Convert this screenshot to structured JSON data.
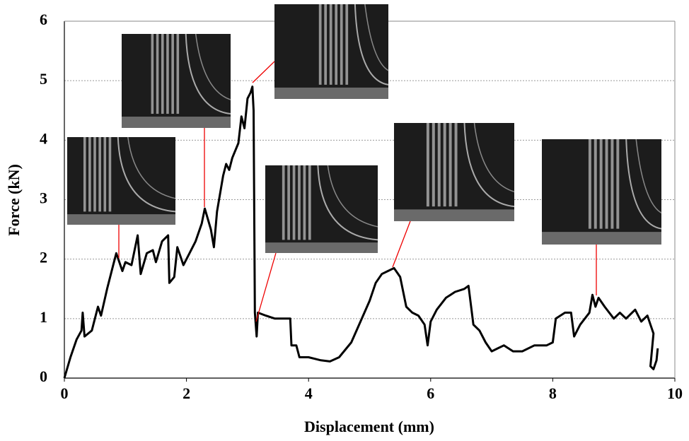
{
  "chart_data": {
    "type": "line",
    "x_label": "Displacement (mm)",
    "y_label": "Force (kN)",
    "x": [
      0,
      0.1,
      0.2,
      0.28,
      0.3,
      0.33,
      0.45,
      0.55,
      0.6,
      0.7,
      0.8,
      0.85,
      0.9,
      0.95,
      1.0,
      1.1,
      1.2,
      1.25,
      1.35,
      1.45,
      1.5,
      1.6,
      1.7,
      1.72,
      1.8,
      1.85,
      1.95,
      2.05,
      2.15,
      2.25,
      2.3,
      2.4,
      2.45,
      2.5,
      2.6,
      2.65,
      2.7,
      2.75,
      2.85,
      2.9,
      2.95,
      3.0,
      3.05,
      3.08,
      3.1,
      3.12,
      3.15,
      3.17,
      3.3,
      3.45,
      3.6,
      3.7,
      3.72,
      3.8,
      3.85,
      4.0,
      4.2,
      4.35,
      4.5,
      4.7,
      4.85,
      5.0,
      5.1,
      5.2,
      5.3,
      5.4,
      5.5,
      5.6,
      5.7,
      5.8,
      5.9,
      5.95,
      6.0,
      6.1,
      6.25,
      6.4,
      6.55,
      6.62,
      6.7,
      6.8,
      6.9,
      7.0,
      7.1,
      7.2,
      7.35,
      7.5,
      7.7,
      7.9,
      8.0,
      8.05,
      8.2,
      8.3,
      8.35,
      8.45,
      8.6,
      8.65,
      8.7,
      8.75,
      8.85,
      9.0,
      9.1,
      9.2,
      9.35,
      9.45,
      9.55,
      9.6,
      9.65,
      9.6,
      9.65,
      9.7,
      9.72
    ],
    "values": [
      0,
      0.35,
      0.65,
      0.8,
      1.1,
      0.7,
      0.8,
      1.2,
      1.05,
      1.5,
      1.9,
      2.1,
      1.95,
      1.8,
      1.95,
      1.9,
      2.4,
      1.75,
      2.1,
      2.15,
      1.95,
      2.3,
      2.4,
      1.6,
      1.7,
      2.2,
      1.9,
      2.1,
      2.3,
      2.6,
      2.85,
      2.5,
      2.2,
      2.8,
      3.4,
      3.6,
      3.5,
      3.7,
      3.95,
      4.4,
      4.2,
      4.7,
      4.8,
      4.9,
      4.5,
      1.1,
      0.7,
      1.1,
      1.05,
      1.0,
      1.0,
      1.0,
      0.55,
      0.55,
      0.35,
      0.35,
      0.3,
      0.28,
      0.35,
      0.6,
      0.95,
      1.3,
      1.6,
      1.75,
      1.8,
      1.85,
      1.7,
      1.2,
      1.1,
      1.05,
      0.9,
      0.55,
      0.95,
      1.15,
      1.35,
      1.45,
      1.5,
      1.55,
      0.9,
      0.8,
      0.6,
      0.45,
      0.5,
      0.55,
      0.45,
      0.45,
      0.55,
      0.55,
      0.6,
      1.0,
      1.1,
      1.1,
      0.7,
      0.9,
      1.1,
      1.4,
      1.2,
      1.35,
      1.2,
      1.0,
      1.1,
      1.0,
      1.15,
      0.95,
      1.05,
      0.9,
      0.75,
      0.2,
      0.15,
      0.3,
      0.5
    ],
    "color": "#000000",
    "xlim": [
      0,
      10
    ],
    "xticks": [
      0,
      2,
      4,
      6,
      8,
      10
    ],
    "ylim": [
      0,
      6
    ],
    "yticks": [
      0,
      1,
      2,
      3,
      4,
      5,
      6
    ],
    "grid": true
  }
}
